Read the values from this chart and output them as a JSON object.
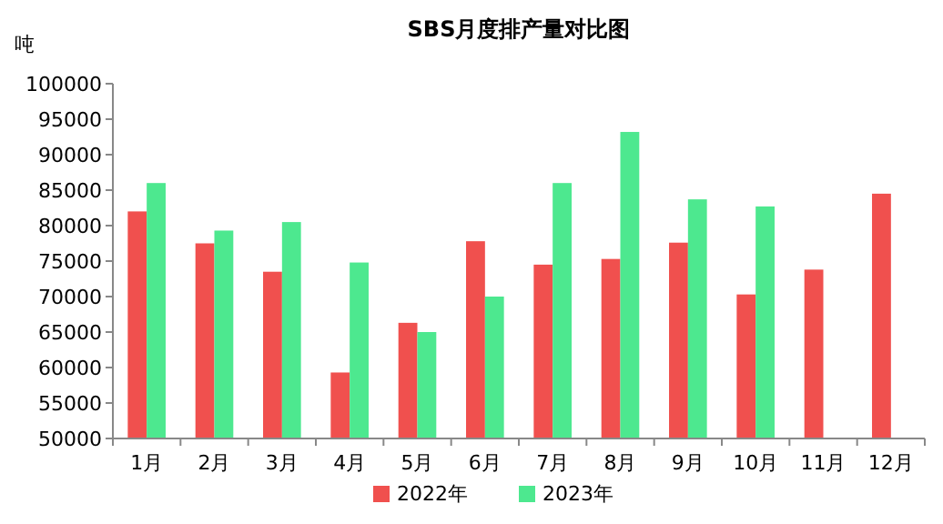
{
  "chart_data": {
    "type": "bar",
    "title": "SBS月度排产量对比图",
    "ylabel": "吨",
    "categories": [
      "1月",
      "2月",
      "3月",
      "4月",
      "5月",
      "6月",
      "7月",
      "8月",
      "9月",
      "10月",
      "11月",
      "12月"
    ],
    "series": [
      {
        "name": "2022年",
        "color": "#f0504e",
        "values": [
          82000,
          77500,
          73500,
          59300,
          66300,
          77800,
          74500,
          75300,
          77600,
          70300,
          73800,
          84500
        ]
      },
      {
        "name": "2023年",
        "color": "#4de88f",
        "values": [
          86000,
          79300,
          80500,
          74800,
          65000,
          70000,
          86000,
          93200,
          83700,
          82700,
          null,
          null
        ]
      }
    ],
    "ylim": [
      50000,
      100000
    ],
    "yticks": [
      50000,
      55000,
      60000,
      65000,
      70000,
      75000,
      80000,
      85000,
      90000,
      95000,
      100000
    ],
    "grid": false,
    "legend": "bottom"
  }
}
